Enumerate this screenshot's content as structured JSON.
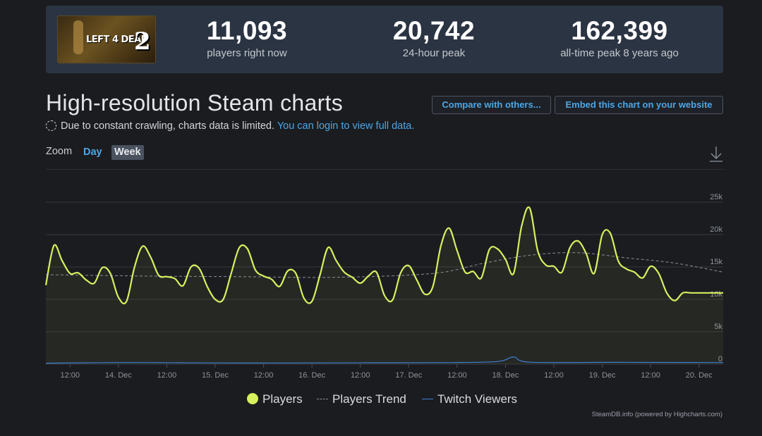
{
  "stats": {
    "logo_text": "LEFT 4 DEAD",
    "logo_numeral": "2",
    "items": [
      {
        "value": "11,093",
        "label": "players right now"
      },
      {
        "value": "20,742",
        "label": "24-hour peak"
      },
      {
        "value": "162,399",
        "label": "all-time peak 8 years ago"
      }
    ]
  },
  "header": {
    "title": "High-resolution Steam charts",
    "notice_text": "Due to constant crawling, charts data is limited.",
    "notice_link": "You can login to view full data.",
    "compare_button": "Compare with others...",
    "embed_button": "Embed this chart on your website"
  },
  "zoom": {
    "label": "Zoom",
    "options": [
      "Day",
      "Week"
    ],
    "selected": "Week"
  },
  "colors": {
    "players": "#d6f05e",
    "trend": "#8a8f96",
    "twitch": "#3f7fd3",
    "accent": "#4aa7e8"
  },
  "icons": {
    "download": "download-icon",
    "notice": "dashed-circle-icon"
  },
  "legend": {
    "players": "Players",
    "trend": "Players Trend",
    "twitch": "Twitch Viewers"
  },
  "credits": "SteamDB.info (powered by Highcharts.com)",
  "chart_data": {
    "type": "line",
    "x_tick_labels": [
      "12:00",
      "14. Dec",
      "12:00",
      "15. Dec",
      "12:00",
      "16. Dec",
      "12:00",
      "17. Dec",
      "12:00",
      "18. Dec",
      "12:00",
      "19. Dec",
      "12:00",
      "20. Dec"
    ],
    "y_tick_labels": [
      "0",
      "5k",
      "10k",
      "15k",
      "20k",
      "25k"
    ],
    "ylim": [
      0,
      25000
    ],
    "xlim": [
      0,
      168
    ],
    "grid": true,
    "legend_position": "bottom",
    "series": [
      {
        "name": "Players",
        "x": [
          0,
          2,
          4,
          6,
          8,
          10,
          12,
          14,
          16,
          18,
          20,
          22,
          24,
          26,
          28,
          30,
          32,
          34,
          36,
          38,
          40,
          42,
          44,
          46,
          48,
          50,
          52,
          54,
          56,
          58,
          60,
          62,
          64,
          66,
          68,
          70,
          72,
          74,
          76,
          78,
          80,
          82,
          84,
          86,
          88,
          90,
          92,
          94,
          96,
          98,
          100,
          102,
          104,
          106,
          108,
          110,
          112,
          114,
          116,
          118,
          120,
          122,
          124,
          126,
          128,
          130,
          132,
          134,
          136,
          138,
          140,
          142,
          144,
          146,
          148,
          150,
          152,
          154,
          156,
          158,
          160,
          162,
          164,
          166,
          168
        ],
        "y": [
          12200,
          18300,
          16000,
          14000,
          14100,
          13000,
          12500,
          14900,
          14000,
          10300,
          9700,
          15000,
          18200,
          16500,
          13700,
          13500,
          13200,
          12100,
          15000,
          14800,
          12000,
          10000,
          10000,
          14100,
          18000,
          17800,
          14500,
          13600,
          13100,
          12000,
          14400,
          14000,
          10200,
          9700,
          13800,
          18000,
          16000,
          14200,
          13400,
          12500,
          13600,
          14200,
          10600,
          9900,
          14100,
          15200,
          13000,
          10800,
          12000,
          18300,
          21000,
          17500,
          14200,
          14300,
          13300,
          17700,
          17800,
          16200,
          14000,
          21300,
          24100,
          17500,
          15300,
          15100,
          14200,
          18000,
          19000,
          17100,
          14000,
          20000,
          20200,
          15900,
          14700,
          14200,
          13300,
          15100,
          14000,
          11000,
          9800,
          11000,
          11000,
          11000,
          11000,
          11000,
          11000
        ]
      },
      {
        "name": "Players Trend",
        "x": [
          0,
          24,
          48,
          72,
          96,
          108,
          120,
          132,
          144,
          156,
          168
        ],
        "y": [
          13800,
          13600,
          13500,
          13400,
          14000,
          15500,
          16800,
          17200,
          16400,
          15600,
          14200
        ]
      },
      {
        "name": "Twitch Viewers",
        "x": [
          0,
          20,
          40,
          60,
          80,
          100,
          112,
          116,
          120,
          140,
          160,
          168
        ],
        "y": [
          150,
          250,
          200,
          180,
          220,
          240,
          400,
          1100,
          300,
          280,
          260,
          250
        ]
      }
    ]
  }
}
